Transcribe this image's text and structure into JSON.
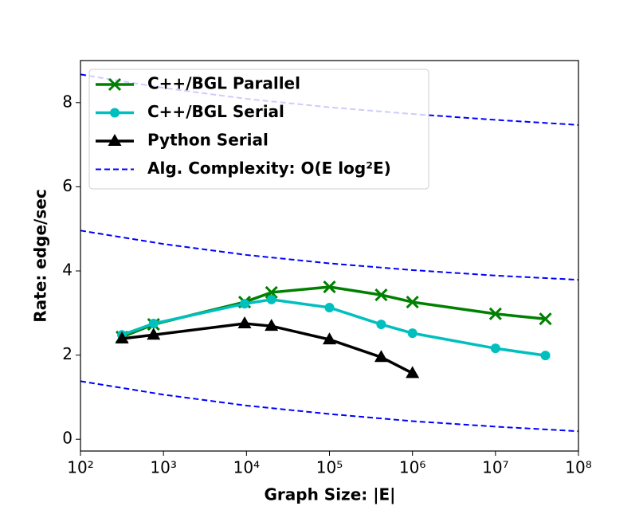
{
  "chart_data": {
    "type": "line",
    "xlabel": "Graph Size: |E|",
    "ylabel": "Rate: edge/sec",
    "xscale": "log",
    "xlim": [
      100,
      100000000
    ],
    "xticks": [
      {
        "value": 100,
        "label": "10²"
      },
      {
        "value": 1000,
        "label": "10³"
      },
      {
        "value": 10000,
        "label": "10⁴"
      },
      {
        "value": 100000,
        "label": "10⁵"
      },
      {
        "value": 1000000,
        "label": "10⁶"
      },
      {
        "value": 10000000,
        "label": "10⁷"
      },
      {
        "value": 100000000,
        "label": "10⁸"
      }
    ],
    "ylim": [
      -0.28,
      9.0
    ],
    "yticks": [
      0,
      2,
      4,
      6,
      8
    ],
    "legend_position": "upper left",
    "x": [
      316,
      760,
      9500,
      20000,
      100000,
      420000,
      1000000,
      10000000,
      40000000
    ],
    "series": [
      {
        "name": "C++/BGL Parallel",
        "color": "#008000",
        "marker": "x",
        "values": [
          2.43,
          2.73,
          3.26,
          3.49,
          3.62,
          3.43,
          3.26,
          2.98,
          2.86
        ]
      },
      {
        "name": "C++/BGL Serial",
        "color": "#00bfbf",
        "marker": "circle",
        "values": [
          2.48,
          2.75,
          3.22,
          3.32,
          3.13,
          2.73,
          2.52,
          2.16,
          1.99
        ]
      },
      {
        "name": "Python Serial",
        "color": "#000000",
        "marker": "triangle",
        "values": [
          2.39,
          2.48,
          2.75,
          2.69,
          2.37,
          1.95,
          1.57,
          null,
          null
        ]
      },
      {
        "name": "Alg. Complexity: O(E log²E)",
        "color": "#0000ff",
        "dashed": true,
        "curve_x": [
          100,
          1000,
          10000,
          100000,
          1000000,
          10000000,
          100000000
        ],
        "curves": [
          [
            8.67,
            8.35,
            8.09,
            7.89,
            7.73,
            7.59,
            7.47
          ],
          [
            4.96,
            4.64,
            4.38,
            4.18,
            4.02,
            3.89,
            3.79
          ],
          [
            1.38,
            1.06,
            0.8,
            0.6,
            0.43,
            0.3,
            0.19
          ]
        ]
      }
    ]
  }
}
